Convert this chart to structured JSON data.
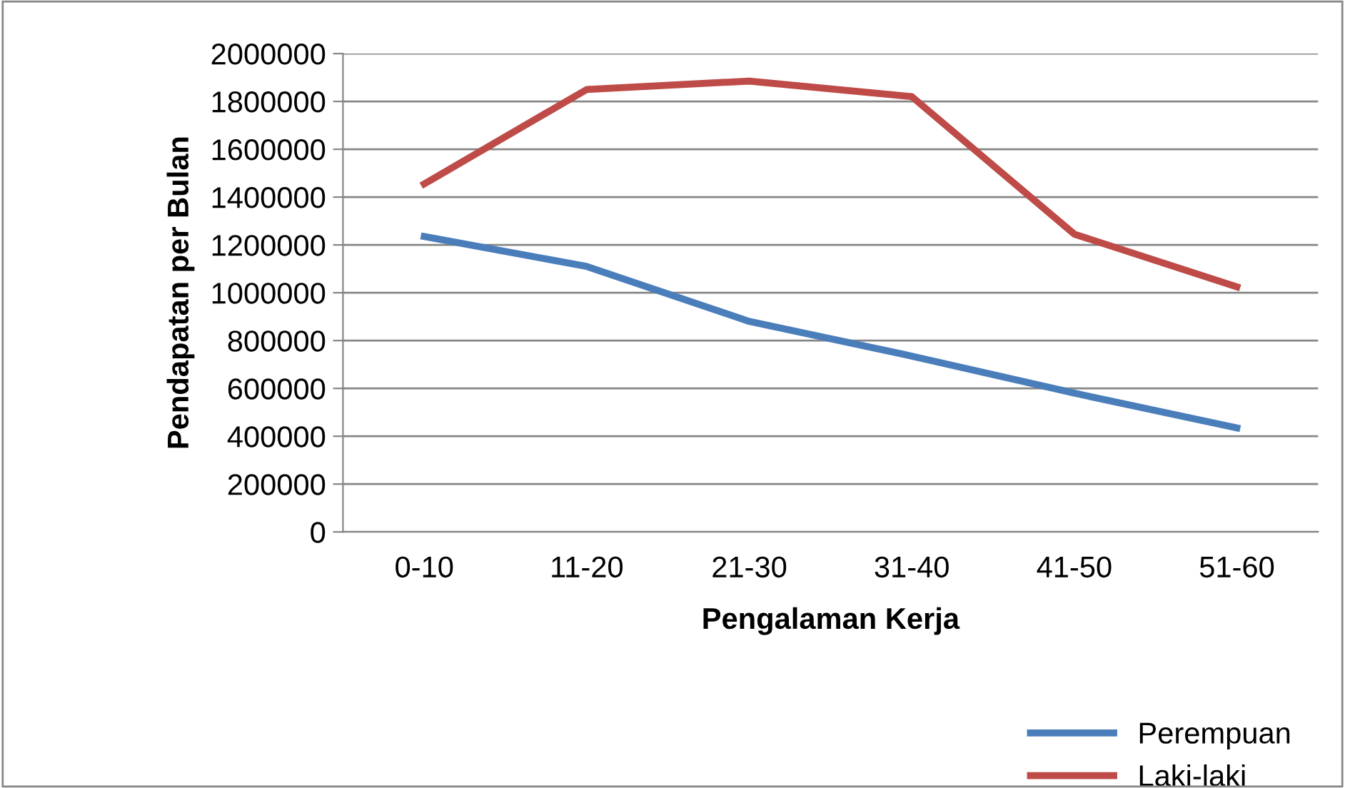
{
  "chart_data": {
    "type": "line",
    "xlabel": "Pengalaman Kerja",
    "ylabel": "Pendapatan per Bulan",
    "categories": [
      "0-10",
      "11-20",
      "21-30",
      "31-40",
      "41-50",
      "51-60"
    ],
    "series": [
      {
        "name": "Perempuan",
        "color": "#4a7ebb",
        "values": [
          1235000,
          1110000,
          880000,
          735000,
          580000,
          435000
        ]
      },
      {
        "name": "Laki-laki",
        "color": "#be4b48",
        "values": [
          1455000,
          1850000,
          1885000,
          1820000,
          1245000,
          1025000
        ]
      }
    ],
    "ylim": [
      0,
      2000000
    ],
    "yticks": [
      0,
      200000,
      400000,
      600000,
      800000,
      1000000,
      1200000,
      1400000,
      1600000,
      1800000,
      2000000
    ],
    "grid": "y",
    "legend": "bottom right",
    "marker": "none",
    "line_style": "solid"
  }
}
